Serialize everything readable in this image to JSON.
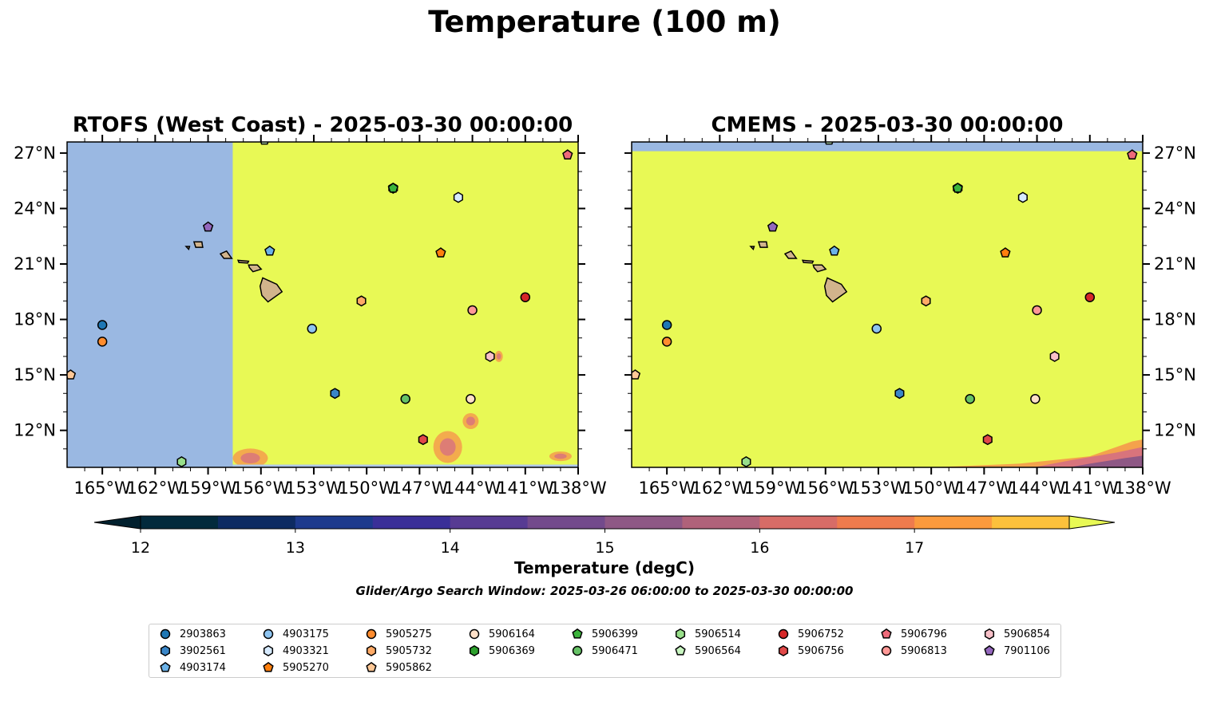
{
  "title": "Temperature (100 m)",
  "panels": [
    {
      "title": "RTOFS (West Coast) - 2025-03-30 00:00:00"
    },
    {
      "title": "CMEMS - 2025-03-30 00:00:00"
    }
  ],
  "map": {
    "lon_range": [
      -167,
      -138
    ],
    "lat_range": [
      10,
      27.6
    ],
    "x_ticks": [
      {
        "v": -165,
        "label": "165°W"
      },
      {
        "v": -162,
        "label": "162°W"
      },
      {
        "v": -159,
        "label": "159°W"
      },
      {
        "v": -156,
        "label": "156°W"
      },
      {
        "v": -153,
        "label": "153°W"
      },
      {
        "v": -150,
        "label": "150°W"
      },
      {
        "v": -147,
        "label": "147°W"
      },
      {
        "v": -144,
        "label": "144°W"
      },
      {
        "v": -141,
        "label": "141°W"
      },
      {
        "v": -138,
        "label": "138°W"
      }
    ],
    "y_ticks": [
      {
        "v": 27,
        "label": "27°N"
      },
      {
        "v": 24,
        "label": "24°N"
      },
      {
        "v": 21,
        "label": "21°N"
      },
      {
        "v": 18,
        "label": "18°N"
      },
      {
        "v": 15,
        "label": "15°N"
      },
      {
        "v": 12,
        "label": "12°N"
      }
    ],
    "colors": {
      "ocean_missing": "#9ab8e2",
      "warm": "#e8f955",
      "land": "#d2b48c"
    }
  },
  "colorbar": {
    "label": "Temperature (degC)",
    "min": 11.75,
    "max": 17.75,
    "levels": [
      12,
      12.5,
      13,
      13.5,
      14,
      14.5,
      15,
      15.5,
      16,
      16.5,
      17,
      17.5
    ],
    "colors": [
      "#022a3c",
      "#0d2b62",
      "#1d3a8d",
      "#3a2f98",
      "#573b93",
      "#734a8c",
      "#8e5885",
      "#b0627a",
      "#d76c67",
      "#ef7b4d",
      "#fb9a3d",
      "#fcc13c"
    ],
    "under_color": "#01202e",
    "over_color": "#e8f955",
    "tick_labels": [
      {
        "v": 12,
        "label": "12"
      },
      {
        "v": 13,
        "label": "13"
      },
      {
        "v": 14,
        "label": "14"
      },
      {
        "v": 15,
        "label": "15"
      },
      {
        "v": 16,
        "label": "16"
      },
      {
        "v": 17,
        "label": "17"
      }
    ]
  },
  "search_window": "Glider/Argo Search Window: 2025-03-26 06:00:00 to 2025-03-30 00:00:00",
  "floats": [
    {
      "id": "2903863",
      "lon": -165.0,
      "lat": 17.7,
      "shape": "circle",
      "color": "#1f77b4"
    },
    {
      "id": "3902561",
      "lon": -151.8,
      "lat": 14.0,
      "shape": "hexagon",
      "color": "#3a86c8"
    },
    {
      "id": "4903174",
      "lon": -155.5,
      "lat": 21.7,
      "shape": "pentagon",
      "color": "#6bb2e8"
    },
    {
      "id": "4903175",
      "lon": -153.1,
      "lat": 17.5,
      "shape": "circle",
      "color": "#8ec4f0"
    },
    {
      "id": "4903321",
      "lon": -144.8,
      "lat": 24.6,
      "shape": "hexagon",
      "color": "#d6eaff"
    },
    {
      "id": "5905270",
      "lon": -145.8,
      "lat": 21.6,
      "shape": "pentagon",
      "color": "#ff7f0e"
    },
    {
      "id": "5905275",
      "lon": -165.0,
      "lat": 16.8,
      "shape": "circle",
      "color": "#ff8c2e"
    },
    {
      "id": "5905732",
      "lon": -150.3,
      "lat": 19.0,
      "shape": "hexagon",
      "color": "#ffaa66"
    },
    {
      "id": "5905862",
      "lon": -166.8,
      "lat": 15.0,
      "shape": "pentagon",
      "color": "#ffc896"
    },
    {
      "id": "5906164",
      "lon": -144.1,
      "lat": 13.7,
      "shape": "circle",
      "color": "#ffe0c8"
    },
    {
      "id": "5906369",
      "lon": -148.5,
      "lat": 25.1,
      "shape": "hexagon",
      "color": "#2ca02c"
    },
    {
      "id": "5906399",
      "lon": -148.5,
      "lat": 25.1,
      "shape": "pentagon",
      "color": "#3cb43c"
    },
    {
      "id": "5906471",
      "lon": -147.8,
      "lat": 13.7,
      "shape": "circle",
      "color": "#66c266"
    },
    {
      "id": "5906514",
      "lon": -160.5,
      "lat": 10.3,
      "shape": "hexagon",
      "color": "#98df8a"
    },
    {
      "id": "5906564",
      "lon": -155.8,
      "lat": 27.7,
      "shape": "pentagon",
      "color": "#c8f5c0"
    },
    {
      "id": "5906752",
      "lon": -141.0,
      "lat": 19.2,
      "shape": "circle",
      "color": "#d62728"
    },
    {
      "id": "5906756",
      "lon": -146.8,
      "lat": 11.5,
      "shape": "hexagon",
      "color": "#e04848"
    },
    {
      "id": "5906796",
      "lon": -138.6,
      "lat": 26.9,
      "shape": "pentagon",
      "color": "#ee6a7a"
    },
    {
      "id": "5906813",
      "lon": -144.0,
      "lat": 18.5,
      "shape": "circle",
      "color": "#ff9896"
    },
    {
      "id": "5906854",
      "lon": -143.0,
      "lat": 16.0,
      "shape": "hexagon",
      "color": "#f8c0c8"
    },
    {
      "id": "7901106",
      "lon": -159.0,
      "lat": 23.0,
      "shape": "pentagon",
      "color": "#9467bd"
    }
  ]
}
